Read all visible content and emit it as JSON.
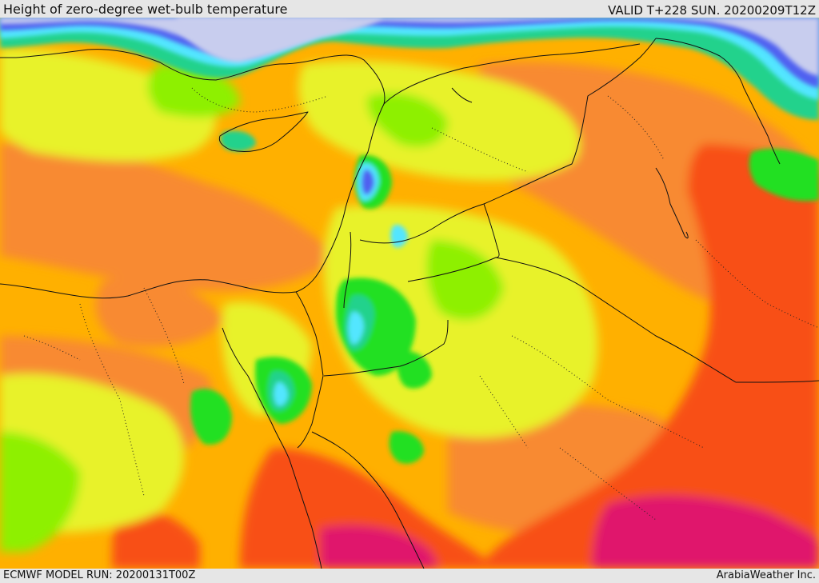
{
  "header": {
    "title": "Height of zero-degree wet-bulb temperature",
    "valid": "VALID T+228 SUN. 20200209T12Z"
  },
  "footer": {
    "model_run": "ECMWF MODEL RUN: 20200131T00Z",
    "credit": "ArabiaWeather Inc."
  },
  "palette": {
    "snow_lavender": "#c8cdee",
    "blue": "#4f60f0",
    "cyan": "#52e6ff",
    "teal": "#22d28c",
    "green": "#24e024",
    "lime": "#8ef000",
    "yellow_green": "#e8f22a",
    "orange_yellow": "#ffb000",
    "orange": "#f88a30",
    "red_orange": "#f85018",
    "magenta": "#e0186c",
    "border_line": "#111111",
    "province_dots": "#222222"
  }
}
